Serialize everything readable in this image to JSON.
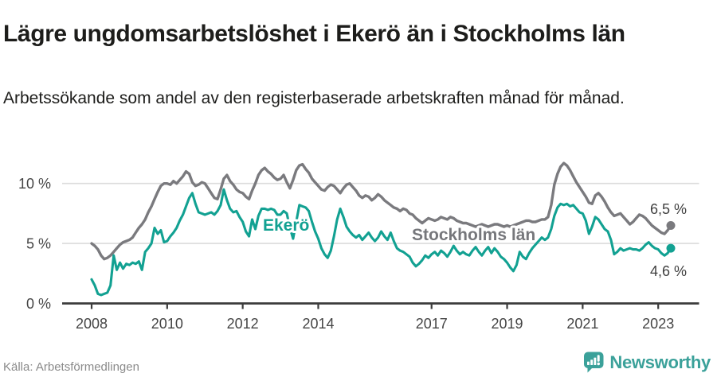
{
  "title": "Lägre ungdomsarbetslöshet i Ekerö än i Stockholms län",
  "subtitle": "Arbetssökande som andel av den registerbaserade arbetskraften månad för månad.",
  "source": "Källa: Arbetsförmedlingen",
  "brand": {
    "name": "Newsworthy",
    "color": "#3BA19A",
    "icon": "newsworthy-speech-bubble-bar-chart-icon"
  },
  "chart_data": {
    "type": "line",
    "title": "Lägre ungdomsarbetslöshet i Ekerö än i Stockholms län",
    "subtitle": "Arbetssökande som andel av den registerbaserade arbetskraften månad för månad.",
    "x_start": "2008-01",
    "x_freq": "monthly",
    "x_tick_years": [
      2008,
      2010,
      2012,
      2014,
      2017,
      2019,
      2021,
      2023
    ],
    "x_tick_labels": [
      "2008",
      "2010",
      "2012",
      "2014",
      "2017",
      "2019",
      "2021",
      "2023"
    ],
    "y_ticks": [
      0,
      5,
      10
    ],
    "y_tick_labels": [
      "0 %",
      "5 %",
      "10 %"
    ],
    "ylim": [
      0,
      12.3
    ],
    "grid": "horizontal",
    "legend_position": "inline-labels",
    "series": [
      {
        "name": "Stockholms län",
        "color": "#7a7a7e",
        "label_color": "#76777b",
        "end_value": 6.5,
        "end_label": "6,5 %",
        "values": [
          5.0,
          4.8,
          4.5,
          4.0,
          3.7,
          3.8,
          4.0,
          4.3,
          4.6,
          4.9,
          5.1,
          5.2,
          5.3,
          5.5,
          5.9,
          6.3,
          6.6,
          7.0,
          7.6,
          8.1,
          8.7,
          9.3,
          9.8,
          10.0,
          10.0,
          9.9,
          10.2,
          10.0,
          10.3,
          10.6,
          11.0,
          10.8,
          10.1,
          9.8,
          9.9,
          10.1,
          10.0,
          9.6,
          9.2,
          8.8,
          8.7,
          9.5,
          10.4,
          10.7,
          10.2,
          9.9,
          9.5,
          9.3,
          9.2,
          8.9,
          8.7,
          9.4,
          10.0,
          10.7,
          11.1,
          11.3,
          11.0,
          10.8,
          10.5,
          10.3,
          10.4,
          10.7,
          10.1,
          9.6,
          10.3,
          11.1,
          11.5,
          11.6,
          11.2,
          10.9,
          10.4,
          10.1,
          9.8,
          9.5,
          9.4,
          9.7,
          9.9,
          9.8,
          9.5,
          9.2,
          9.6,
          9.9,
          10.0,
          9.7,
          9.4,
          9.0,
          8.8,
          9.0,
          8.9,
          8.6,
          8.8,
          9.1,
          8.9,
          8.6,
          8.4,
          8.2,
          8.0,
          7.9,
          7.7,
          7.9,
          7.8,
          7.5,
          7.4,
          7.1,
          6.9,
          6.7,
          6.9,
          7.1,
          7.0,
          6.9,
          7.0,
          7.2,
          7.1,
          7.0,
          7.2,
          7.1,
          6.9,
          6.8,
          6.7,
          6.7,
          6.6,
          6.5,
          6.4,
          6.5,
          6.6,
          6.5,
          6.4,
          6.5,
          6.6,
          6.6,
          6.5,
          6.4,
          6.5,
          6.4,
          6.5,
          6.6,
          6.7,
          6.8,
          6.9,
          6.9,
          6.8,
          6.8,
          6.9,
          7.0,
          7.0,
          7.2,
          8.2,
          9.9,
          10.8,
          11.4,
          11.7,
          11.5,
          11.1,
          10.6,
          10.1,
          9.7,
          9.3,
          8.9,
          8.4,
          8.3,
          9.0,
          9.2,
          8.9,
          8.5,
          8.0,
          7.6,
          7.3,
          7.4,
          7.5,
          7.2,
          6.9,
          6.6,
          6.8,
          7.1,
          7.4,
          7.3,
          7.1,
          6.8,
          6.5,
          6.3,
          6.1,
          5.9,
          5.8,
          6.1,
          6.5
        ]
      },
      {
        "name": "Ekerö",
        "color": "#12a192",
        "label_color": "#12a192",
        "end_value": 4.6,
        "end_label": "4,6 %",
        "values": [
          2.0,
          1.5,
          0.8,
          0.7,
          0.8,
          0.9,
          1.5,
          4.0,
          2.8,
          3.4,
          2.9,
          3.3,
          3.2,
          3.4,
          3.3,
          3.5,
          2.8,
          4.3,
          4.6,
          5.0,
          6.3,
          5.8,
          6.1,
          5.1,
          5.2,
          5.6,
          5.9,
          6.3,
          6.9,
          7.4,
          8.1,
          8.8,
          9.2,
          8.3,
          7.6,
          7.5,
          7.4,
          7.5,
          7.6,
          7.4,
          7.7,
          8.2,
          9.5,
          8.6,
          7.9,
          7.6,
          7.7,
          7.2,
          6.8,
          6.0,
          5.6,
          7.0,
          6.2,
          7.3,
          7.9,
          7.9,
          7.8,
          7.9,
          7.8,
          7.4,
          7.4,
          7.7,
          7.5,
          6.3,
          5.4,
          6.8,
          8.2,
          8.1,
          8.0,
          7.7,
          6.8,
          6.0,
          5.4,
          4.6,
          4.1,
          3.8,
          4.4,
          5.6,
          7.0,
          7.9,
          7.2,
          6.4,
          6.0,
          5.7,
          5.5,
          5.7,
          5.3,
          5.6,
          5.9,
          5.5,
          5.2,
          5.5,
          6.0,
          5.6,
          5.3,
          5.9,
          5.2,
          4.6,
          4.4,
          4.3,
          4.1,
          3.9,
          3.4,
          3.1,
          3.3,
          3.6,
          4.0,
          3.8,
          4.1,
          4.3,
          4.0,
          4.4,
          4.2,
          3.9,
          4.3,
          4.8,
          4.4,
          4.1,
          4.3,
          4.1,
          4.0,
          4.4,
          4.7,
          4.3,
          4.0,
          4.4,
          4.7,
          4.2,
          4.6,
          4.3,
          3.9,
          3.7,
          3.4,
          3.0,
          2.7,
          3.2,
          4.3,
          3.9,
          3.7,
          4.2,
          4.6,
          4.9,
          5.2,
          5.5,
          5.3,
          5.5,
          6.2,
          7.3,
          8.0,
          8.3,
          8.2,
          8.3,
          8.1,
          8.2,
          7.9,
          7.6,
          7.5,
          6.9,
          5.8,
          6.4,
          7.2,
          7.0,
          6.6,
          6.2,
          6.0,
          5.3,
          4.1,
          4.3,
          4.6,
          4.4,
          4.5,
          4.6,
          4.5,
          4.5,
          4.4,
          4.6,
          4.9,
          5.1,
          4.8,
          4.6,
          4.5,
          4.2,
          4.0,
          4.2,
          4.6
        ]
      }
    ]
  }
}
